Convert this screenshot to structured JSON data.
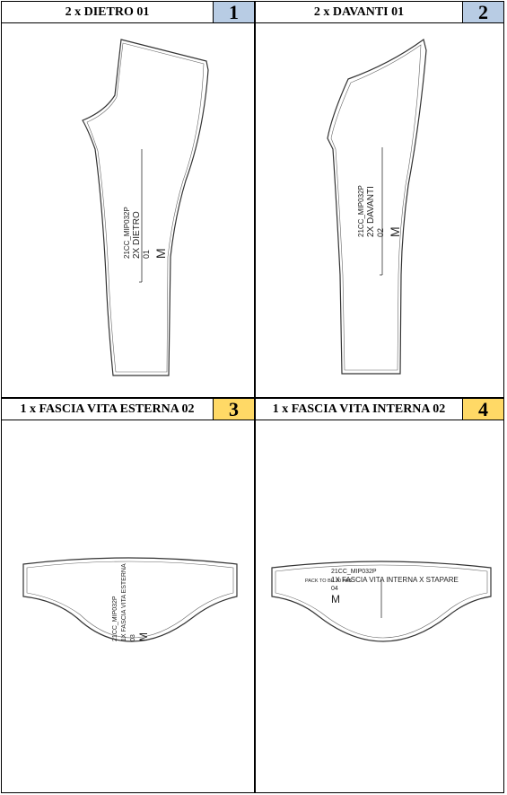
{
  "panels": [
    {
      "title": "2 x DIETRO 01",
      "number": "1",
      "label": {
        "code": "21CC_MIP032P",
        "line2": "2X DIETRO",
        "line3": "01",
        "size": "M"
      }
    },
    {
      "title": "2 x DAVANTI 01",
      "number": "2",
      "label": {
        "code": "21CC_MIP032P",
        "line2": "2X DAVANTI",
        "line3": "02",
        "size": "M"
      }
    },
    {
      "title": "1 x FASCIA VITA ESTERNA 02",
      "number": "3",
      "label": {
        "code": "21CC_MIP032P",
        "line2": "1X FASCIA VITA ESTERNA",
        "line3": "03",
        "size": "M"
      }
    },
    {
      "title": "1 x FASCIA VITA INTERNA 02",
      "number": "4",
      "label": {
        "code": "21CC_MIP032P",
        "line2": "1X FASCIA VITA INTERNA X STAPARE",
        "overlap": "PACK TO BE 30 FAB",
        "line3": "04",
        "size": "M"
      }
    }
  ],
  "colors": {
    "number_bg_top": "#b8cce4",
    "number_bg_bottom": "#ffd966"
  }
}
